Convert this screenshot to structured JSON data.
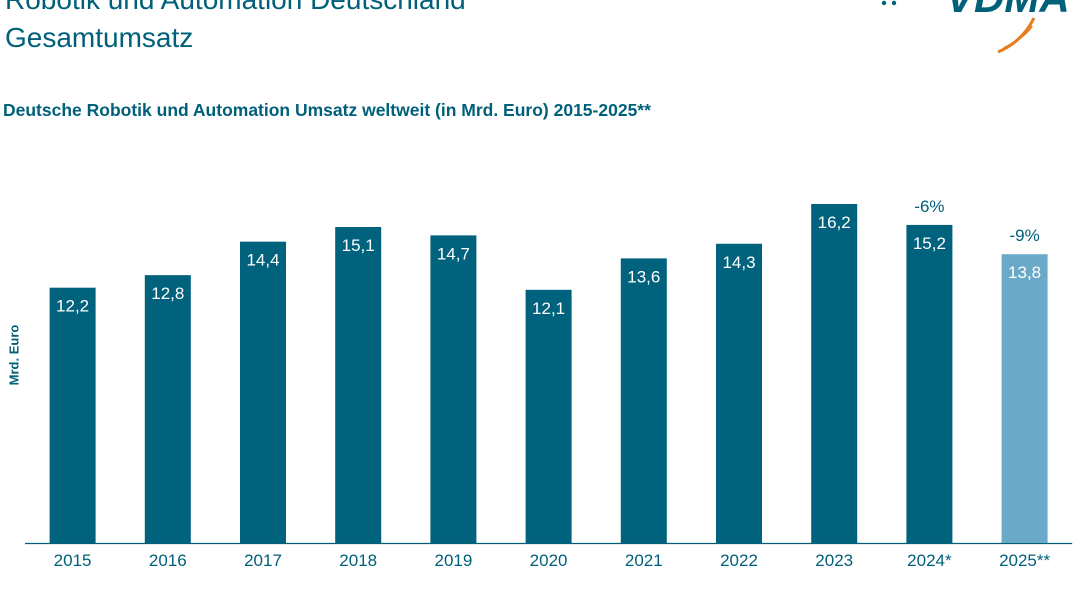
{
  "header": {
    "title_line1": "Robotik und Automation Deutschland",
    "title_line2": "Gesamtumsatz",
    "logo_text": "VDMA"
  },
  "chart_data": {
    "type": "bar",
    "title": "Deutsche Robotik und Automation Umsatz weltweit (in Mrd. Euro) 2015-2025**",
    "ylabel": "Mrd. Euro",
    "xlabel": "",
    "categories": [
      "2015",
      "2016",
      "2017",
      "2018",
      "2019",
      "2020",
      "2021",
      "2022",
      "2023",
      "2024*",
      "2025**"
    ],
    "values": [
      12.2,
      12.8,
      14.4,
      15.1,
      14.7,
      12.1,
      13.6,
      14.3,
      16.2,
      15.2,
      13.8
    ],
    "value_labels": [
      "12,2",
      "12,8",
      "14,4",
      "15,1",
      "14,7",
      "12,1",
      "13,6",
      "14,3",
      "16,2",
      "15,2",
      "13,8"
    ],
    "annotations": [
      {
        "category": "2024*",
        "text": "-6%"
      },
      {
        "category": "2025**",
        "text": "-9%"
      }
    ],
    "ylim": [
      0,
      18
    ],
    "grid": false,
    "colors": {
      "bar": "#00627c",
      "bar_forecast": "#6aaac8",
      "text": "#00607a",
      "logo": "#00607a",
      "logo_swoosh": "#e87d1e"
    }
  }
}
